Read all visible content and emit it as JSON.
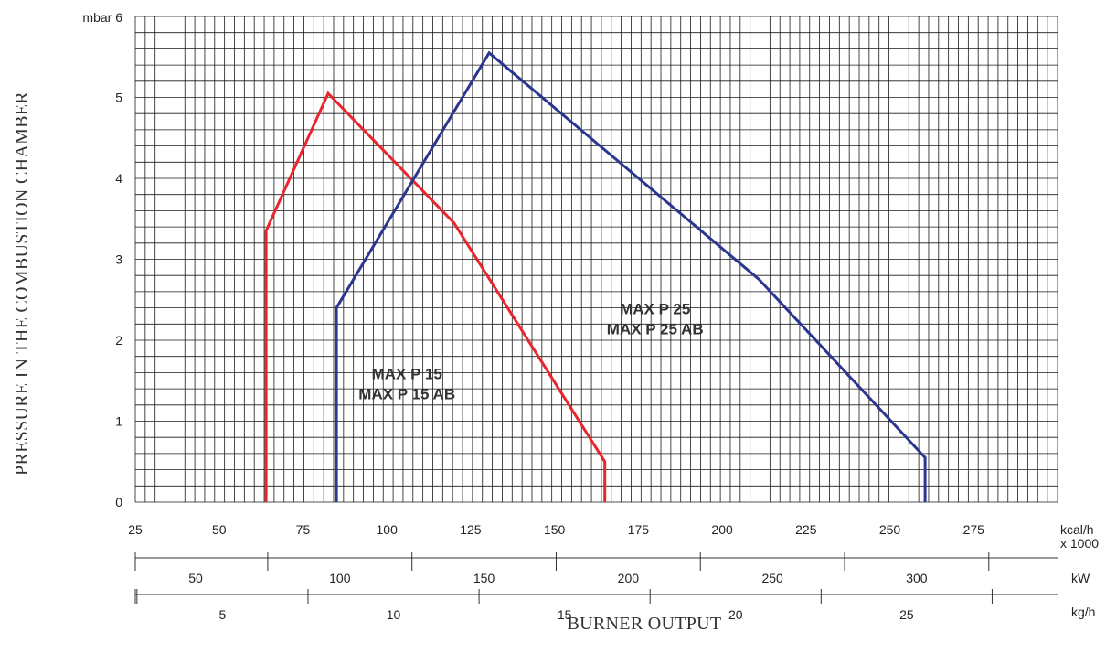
{
  "chart_data": {
    "type": "line",
    "xlabel": "BURNER OUTPUT",
    "ylabel": "PRESSURE IN THE COMBUSTION CHAMBER",
    "xlim": [
      25,
      300
    ],
    "ylim": [
      0,
      6
    ],
    "x_unit": "kcal/h",
    "x_unit_multiplier": "x 1000",
    "y_top_label": "mbar 6",
    "x_ticks": [
      "25",
      "50",
      "75",
      "100",
      "125",
      "150",
      "175",
      "200",
      "225",
      "250",
      "275"
    ],
    "y_ticks": [
      "0",
      "1",
      "2",
      "3",
      "4",
      "5"
    ],
    "grid": true,
    "secondary_axes": [
      {
        "unit": "kW",
        "labels": [
          {
            "text": "50",
            "value": 50
          },
          {
            "text": "100",
            "value": 100
          },
          {
            "text": "150",
            "value": 150
          },
          {
            "text": "200",
            "value": 200
          },
          {
            "text": "250",
            "value": 250
          },
          {
            "text": "300",
            "value": 300
          }
        ],
        "tick_values": [
          25,
          75,
          125,
          175,
          225,
          275,
          325
        ]
      },
      {
        "unit": "kg/h",
        "labels": [
          {
            "text": "5",
            "value": 5
          },
          {
            "text": "10",
            "value": 10
          },
          {
            "text": "15",
            "value": 15
          },
          {
            "text": "20",
            "value": 20
          },
          {
            "text": "25",
            "value": 25
          }
        ],
        "tick_values": [
          2.5,
          7.5,
          12.5,
          17.5,
          22.5,
          27.5
        ]
      }
    ],
    "series": [
      {
        "name": "MAX P 15",
        "name_line2": "MAX P 15 AB",
        "color": "#e8262d",
        "label_anchor": [
          106,
          1.5
        ],
        "points": [
          [
            64,
            0
          ],
          [
            64,
            3.35
          ],
          [
            82.5,
            5.05
          ],
          [
            120,
            3.45
          ],
          [
            165,
            0.5
          ],
          [
            165,
            0
          ]
        ]
      },
      {
        "name": "MAX P 25",
        "name_line2": "MAX P 25 AB",
        "color": "#2b3690",
        "label_anchor": [
          180,
          2.3
        ],
        "points": [
          [
            85,
            0
          ],
          [
            85,
            2.4
          ],
          [
            130.5,
            5.55
          ],
          [
            211,
            2.75
          ],
          [
            260.5,
            0.55
          ],
          [
            260.5,
            0
          ]
        ]
      }
    ]
  }
}
